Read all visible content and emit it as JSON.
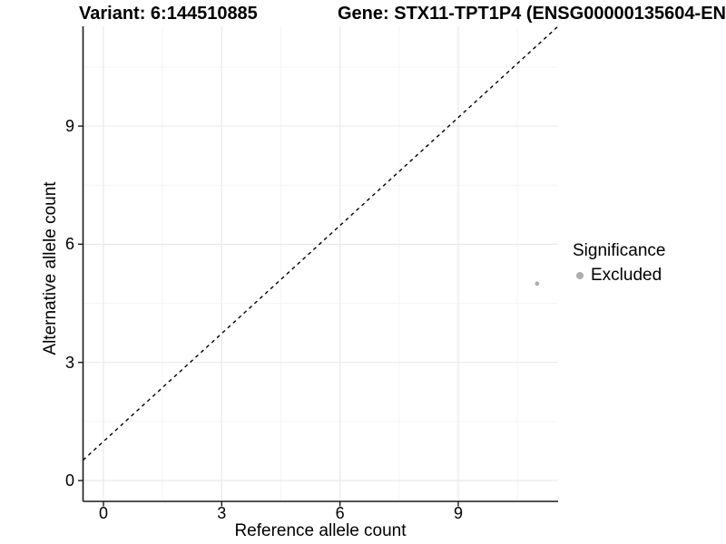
{
  "title": {
    "variant": "Variant: 6:144510885",
    "gene": "Gene: STX11-TPT1P4 (ENSG00000135604-EN"
  },
  "axes": {
    "x_title": "Reference allele count",
    "y_title": "Alternative allele count"
  },
  "legend": {
    "title": "Significance",
    "items": [
      {
        "label": "Excluded",
        "color": "#aeaeae",
        "marker": "dot-icon"
      }
    ]
  },
  "colors": {
    "point": "#aeaeae",
    "grid_major": "#e9e9e9",
    "grid_minor": "#f4f4f4",
    "axis_line": "#1a1a1a",
    "reference_line": "#000000"
  },
  "chart_data": {
    "type": "scatter",
    "title": "Variant: 6:144510885   Gene: STX11-TPT1P4 (ENSG00000135604-EN",
    "xlabel": "Reference allele count",
    "ylabel": "Alternative allele count",
    "xlim": [
      -0.55,
      11.55
    ],
    "ylim": [
      -0.55,
      11.55
    ],
    "xticks": [
      0,
      3,
      6,
      9
    ],
    "yticks": [
      0,
      3,
      6,
      9
    ],
    "minor_ticks": [
      1.5,
      4.5,
      7.5,
      10.5
    ],
    "grid": true,
    "legend_position": "right",
    "series": [
      {
        "name": "Excluded",
        "color": "#aeaeae",
        "points": [
          {
            "x": 11,
            "y": 5
          }
        ]
      }
    ],
    "reference_line": {
      "kind": "identity y=x",
      "style": "dashed",
      "color": "#000000"
    }
  }
}
